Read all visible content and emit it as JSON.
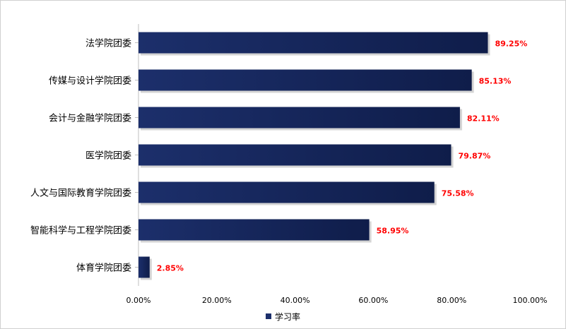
{
  "chart_data": {
    "type": "bar",
    "orientation": "horizontal",
    "title": "",
    "xlabel": "",
    "ylabel": "",
    "categories": [
      "法学院团委",
      "传媒与设计学院团委",
      "会计与金融学院团委",
      "医学院团委",
      "人文与国际教育学院团委",
      "智能科学与工程学院团委",
      "体育学院团委"
    ],
    "series": [
      {
        "name": "学习率",
        "values": [
          89.25,
          85.13,
          82.11,
          79.87,
          75.58,
          58.95,
          2.85
        ],
        "labels": [
          "89.25%",
          "85.13%",
          "82.11%",
          "79.87%",
          "75.58%",
          "58.95%",
          "2.85%"
        ]
      }
    ],
    "xlim": [
      0,
      100
    ],
    "xticks": [
      "0.00%",
      "20.00%",
      "40.00%",
      "60.00%",
      "80.00%",
      "100.00%"
    ],
    "grid": false,
    "legend": "bottom",
    "colors": {
      "bar": "#1c2f6b",
      "bar_dark": "#0f1d4a",
      "data_label": "#ff0000",
      "axis": "#bfbfbf"
    }
  }
}
